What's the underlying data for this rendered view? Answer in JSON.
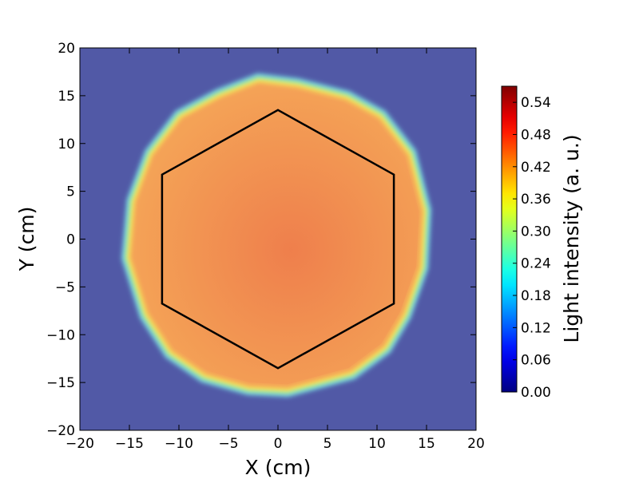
{
  "chart_data": {
    "type": "heatmap",
    "title": "",
    "xlabel": "X (cm)",
    "ylabel": "Y (cm)",
    "xlim": [
      -20,
      20
    ],
    "ylim": [
      -20,
      20
    ],
    "x_ticks": [
      -20,
      -15,
      -10,
      -5,
      0,
      5,
      10,
      15,
      20
    ],
    "y_ticks": [
      -20,
      -15,
      -10,
      -5,
      0,
      5,
      10,
      15,
      20
    ],
    "x_tick_labels": [
      "−20",
      "−15",
      "−10",
      "−5",
      "0",
      "5",
      "10",
      "15",
      "20"
    ],
    "y_tick_labels": [
      "−20",
      "−15",
      "−10",
      "−5",
      "0",
      "5",
      "10",
      "15",
      "20"
    ],
    "grid": false,
    "colormap": "jet",
    "colorbar": {
      "label": "Light intensity (a. u.)",
      "range": [
        0.0,
        0.57
      ],
      "ticks": [
        0.0,
        0.06,
        0.12,
        0.18,
        0.24,
        0.3,
        0.36,
        0.42,
        0.48,
        0.54
      ],
      "tick_labels": [
        "0.00",
        "0.06",
        "0.12",
        "0.18",
        "0.24",
        "0.30",
        "0.36",
        "0.42",
        "0.48",
        "0.54"
      ]
    },
    "background_intensity": 0.03,
    "disk": {
      "center": [
        0,
        0
      ],
      "radius_cm": 15.5,
      "intensity": 0.47,
      "intensity_center": 0.49,
      "polygon": [
        [
          -2,
          16.8
        ],
        [
          2,
          16.3
        ],
        [
          7,
          15
        ],
        [
          10.5,
          13
        ],
        [
          13.5,
          9
        ],
        [
          15,
          3
        ],
        [
          14.7,
          -3
        ],
        [
          13,
          -8
        ],
        [
          11,
          -11.5
        ],
        [
          7.5,
          -14.2
        ],
        [
          1,
          -16
        ],
        [
          -3,
          -15.8
        ],
        [
          -7.5,
          -14.5
        ],
        [
          -11,
          -12
        ],
        [
          -13.5,
          -8
        ],
        [
          -15.3,
          -2
        ],
        [
          -14.8,
          4
        ],
        [
          -13,
          9
        ],
        [
          -10,
          13
        ],
        [
          -6,
          15.2
        ]
      ]
    },
    "hexagon": {
      "vertices": [
        [
          0,
          13.5
        ],
        [
          11.7,
          6.75
        ],
        [
          11.7,
          -6.75
        ],
        [
          0,
          -13.5
        ],
        [
          -11.7,
          -6.75
        ],
        [
          -11.7,
          6.75
        ]
      ],
      "color": "#000000"
    }
  }
}
